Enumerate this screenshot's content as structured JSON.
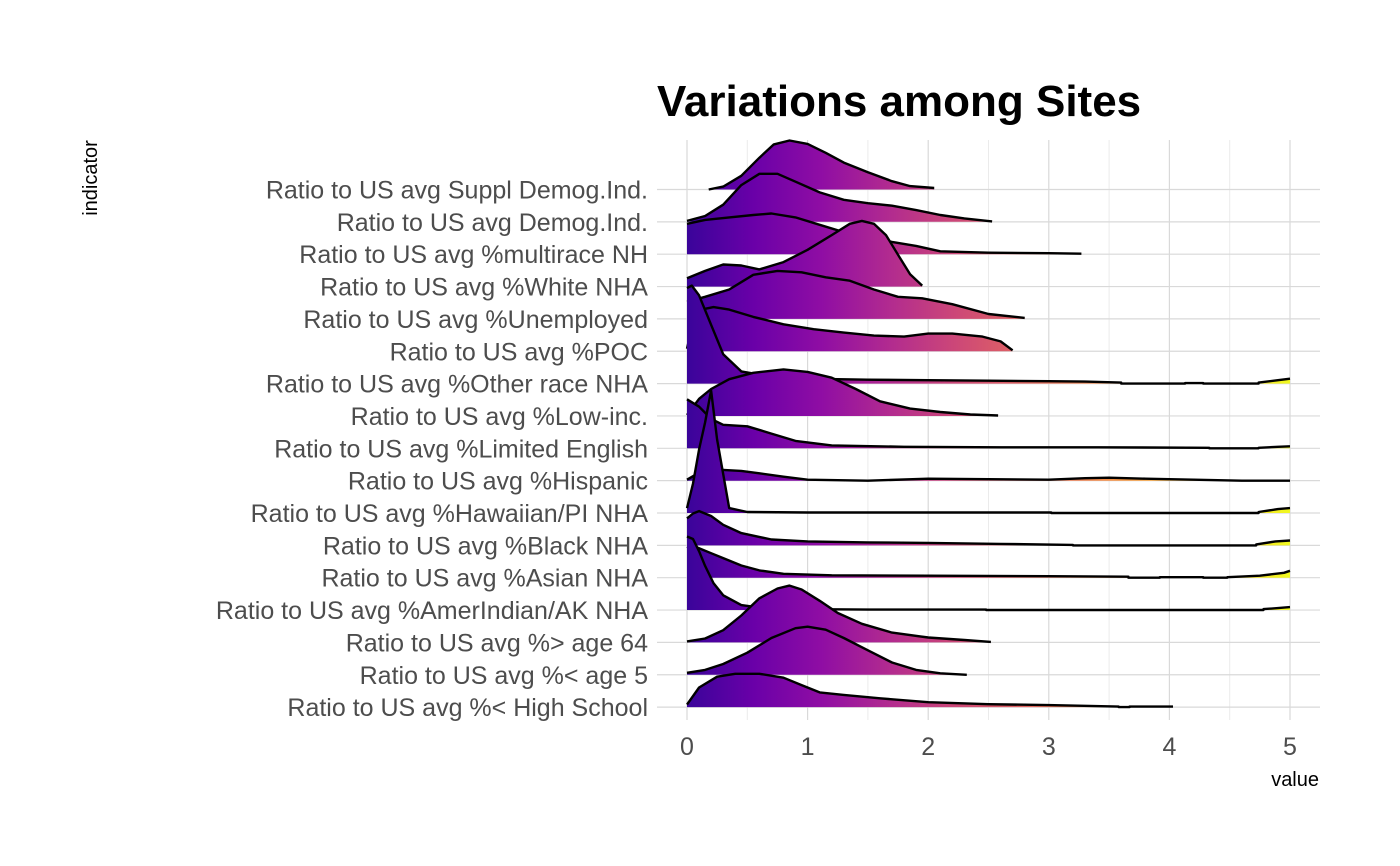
{
  "chart_data": {
    "type": "ridgeline",
    "title": "Variations among Sites",
    "xlabel": "value",
    "ylabel": "indicator",
    "xlim": [
      -0.25,
      5.25
    ],
    "x_ticks": [
      0,
      1,
      2,
      3,
      4,
      5
    ],
    "grid": true,
    "legend": "none",
    "colors": {
      "gradient": [
        "#3a049a",
        "#6a00a8",
        "#8f0da4",
        "#b12a90",
        "#cc4778",
        "#e16462",
        "#f1844b",
        "#fca636",
        "#fcce25",
        "#f0f921"
      ],
      "outline": "#000000",
      "background": "#ffffff"
    },
    "series": [
      {
        "name": "Ratio to US avg Suppl Demog.Ind.",
        "density": [
          [
            0.18,
            0
          ],
          [
            0.3,
            0.06
          ],
          [
            0.45,
            0.28
          ],
          [
            0.6,
            0.65
          ],
          [
            0.72,
            0.92
          ],
          [
            0.85,
            1.0
          ],
          [
            1.0,
            0.93
          ],
          [
            1.15,
            0.75
          ],
          [
            1.3,
            0.55
          ],
          [
            1.5,
            0.35
          ],
          [
            1.7,
            0.17
          ],
          [
            1.85,
            0.07
          ],
          [
            2.05,
            0.03
          ]
        ]
      },
      {
        "name": "Ratio to US avg Demog.Ind.",
        "density": [
          [
            0.0,
            0.02
          ],
          [
            0.15,
            0.12
          ],
          [
            0.3,
            0.35
          ],
          [
            0.45,
            0.75
          ],
          [
            0.6,
            0.98
          ],
          [
            0.75,
            0.98
          ],
          [
            0.9,
            0.82
          ],
          [
            1.1,
            0.6
          ],
          [
            1.3,
            0.45
          ],
          [
            1.5,
            0.38
          ],
          [
            1.7,
            0.33
          ],
          [
            1.9,
            0.24
          ],
          [
            2.1,
            0.14
          ],
          [
            2.3,
            0.07
          ],
          [
            2.53,
            0.01
          ]
        ]
      },
      {
        "name": "Ratio to US avg %multirace NH",
        "density": [
          [
            0.0,
            0.62
          ],
          [
            0.15,
            0.7
          ],
          [
            0.35,
            0.75
          ],
          [
            0.55,
            0.8
          ],
          [
            0.7,
            0.83
          ],
          [
            0.9,
            0.75
          ],
          [
            1.1,
            0.6
          ],
          [
            1.3,
            0.45
          ],
          [
            1.5,
            0.35
          ],
          [
            1.7,
            0.25
          ],
          [
            1.9,
            0.17
          ],
          [
            2.1,
            0.06
          ],
          [
            2.5,
            0.03
          ],
          [
            3.0,
            0.02
          ],
          [
            3.27,
            0.01
          ]
        ]
      },
      {
        "name": "Ratio to US avg %White NHA",
        "density": [
          [
            0.0,
            0.17
          ],
          [
            0.15,
            0.32
          ],
          [
            0.3,
            0.45
          ],
          [
            0.45,
            0.43
          ],
          [
            0.6,
            0.35
          ],
          [
            0.8,
            0.5
          ],
          [
            1.0,
            0.75
          ],
          [
            1.2,
            1.05
          ],
          [
            1.35,
            1.28
          ],
          [
            1.45,
            1.34
          ],
          [
            1.55,
            1.28
          ],
          [
            1.65,
            1.05
          ],
          [
            1.75,
            0.65
          ],
          [
            1.85,
            0.25
          ],
          [
            1.95,
            0.02
          ]
        ]
      },
      {
        "name": "Ratio to US avg %Unemployed",
        "density": [
          [
            0.0,
            0.35
          ],
          [
            0.15,
            0.45
          ],
          [
            0.35,
            0.6
          ],
          [
            0.55,
            0.9
          ],
          [
            0.75,
            0.98
          ],
          [
            0.95,
            0.95
          ],
          [
            1.15,
            0.85
          ],
          [
            1.35,
            0.78
          ],
          [
            1.55,
            0.6
          ],
          [
            1.75,
            0.45
          ],
          [
            1.95,
            0.42
          ],
          [
            2.2,
            0.3
          ],
          [
            2.5,
            0.1
          ],
          [
            2.8,
            0.02
          ]
        ]
      },
      {
        "name": "Ratio to US avg %POC",
        "density": [
          [
            0.0,
            0.05
          ],
          [
            0.05,
            0.6
          ],
          [
            0.12,
            0.85
          ],
          [
            0.22,
            0.9
          ],
          [
            0.35,
            0.85
          ],
          [
            0.55,
            0.7
          ],
          [
            0.8,
            0.55
          ],
          [
            1.05,
            0.45
          ],
          [
            1.3,
            0.38
          ],
          [
            1.55,
            0.32
          ],
          [
            1.8,
            0.3
          ],
          [
            2.0,
            0.36
          ],
          [
            2.2,
            0.36
          ],
          [
            2.45,
            0.3
          ],
          [
            2.6,
            0.2
          ],
          [
            2.7,
            0.02
          ]
        ]
      },
      {
        "name": "Ratio to US avg %Other race NHA",
        "density": [
          [
            0.0,
            1.95
          ],
          [
            0.04,
            2.0
          ],
          [
            0.1,
            1.8
          ],
          [
            0.2,
            1.2
          ],
          [
            0.3,
            0.6
          ],
          [
            0.45,
            0.25
          ],
          [
            0.7,
            0.14
          ],
          [
            1.0,
            0.1
          ],
          [
            1.5,
            0.08
          ],
          [
            2.0,
            0.07
          ],
          [
            2.5,
            0.06
          ],
          [
            3.0,
            0.05
          ],
          [
            3.3,
            0.04
          ],
          [
            3.6,
            0.02
          ],
          [
            3.6,
            0
          ],
          [
            4.13,
            0
          ],
          [
            4.13,
            0.01
          ],
          [
            4.28,
            0.01
          ],
          [
            4.28,
            0
          ],
          [
            4.74,
            0
          ],
          [
            4.74,
            0.02
          ],
          [
            4.9,
            0.07
          ],
          [
            5.0,
            0.1
          ]
        ]
      },
      {
        "name": "Ratio to US avg %Low-inc.",
        "density": [
          [
            0.0,
            0.02
          ],
          [
            0.1,
            0.35
          ],
          [
            0.2,
            0.55
          ],
          [
            0.35,
            0.75
          ],
          [
            0.55,
            0.88
          ],
          [
            0.8,
            0.95
          ],
          [
            1.0,
            0.9
          ],
          [
            1.2,
            0.78
          ],
          [
            1.4,
            0.55
          ],
          [
            1.6,
            0.3
          ],
          [
            1.85,
            0.15
          ],
          [
            2.1,
            0.08
          ],
          [
            2.35,
            0.03
          ],
          [
            2.58,
            0.01
          ]
        ]
      },
      {
        "name": "Ratio to US avg %Limited English",
        "density": [
          [
            0.0,
            1.0
          ],
          [
            0.1,
            0.85
          ],
          [
            0.2,
            0.6
          ],
          [
            0.3,
            0.48
          ],
          [
            0.5,
            0.45
          ],
          [
            0.7,
            0.3
          ],
          [
            0.9,
            0.15
          ],
          [
            1.2,
            0.06
          ],
          [
            1.8,
            0.03
          ],
          [
            2.6,
            0.02
          ],
          [
            3.4,
            0.02
          ],
          [
            4.33,
            0.01
          ],
          [
            4.33,
            0
          ],
          [
            4.74,
            0
          ],
          [
            4.74,
            0.01
          ],
          [
            4.9,
            0.03
          ],
          [
            5.0,
            0.04
          ]
        ]
      },
      {
        "name": "Ratio to US avg %Hispanic",
        "density": [
          [
            0.0,
            0.02
          ],
          [
            0.07,
            0.12
          ],
          [
            0.15,
            0.24
          ],
          [
            0.3,
            0.22
          ],
          [
            0.45,
            0.2
          ],
          [
            0.6,
            0.15
          ],
          [
            0.8,
            0.08
          ],
          [
            1.0,
            0.02
          ],
          [
            1.5,
            0.0
          ],
          [
            2.0,
            0.04
          ],
          [
            2.5,
            0.03
          ],
          [
            3.0,
            0.02
          ],
          [
            3.3,
            0.05
          ],
          [
            3.5,
            0.06
          ],
          [
            3.8,
            0.04
          ],
          [
            4.2,
            0.02
          ],
          [
            4.6,
            0.0
          ],
          [
            5.0,
            0.0
          ]
        ]
      },
      {
        "name": "Ratio to US avg %Hawaiian/PI NHA",
        "density": [
          [
            0.0,
            0.1
          ],
          [
            0.05,
            0.6
          ],
          [
            0.1,
            1.3
          ],
          [
            0.15,
            1.85
          ],
          [
            0.2,
            2.5
          ],
          [
            0.25,
            1.5
          ],
          [
            0.35,
            0.1
          ],
          [
            0.5,
            0.02
          ],
          [
            1.0,
            0.01
          ],
          [
            2.0,
            0.01
          ],
          [
            3.02,
            0.01
          ],
          [
            3.02,
            0
          ],
          [
            4.74,
            0
          ],
          [
            4.74,
            0.02
          ],
          [
            4.9,
            0.08
          ],
          [
            5.0,
            0.1
          ]
        ]
      },
      {
        "name": "Ratio to US avg %Black NHA",
        "density": [
          [
            0.0,
            0.55
          ],
          [
            0.05,
            0.65
          ],
          [
            0.1,
            0.7
          ],
          [
            0.2,
            0.6
          ],
          [
            0.3,
            0.42
          ],
          [
            0.45,
            0.25
          ],
          [
            0.7,
            0.12
          ],
          [
            1.0,
            0.08
          ],
          [
            1.5,
            0.06
          ],
          [
            2.0,
            0.05
          ],
          [
            2.6,
            0.03
          ],
          [
            3.2,
            0.01
          ],
          [
            3.2,
            0
          ],
          [
            4.72,
            0
          ],
          [
            4.72,
            0.02
          ],
          [
            4.88,
            0.08
          ],
          [
            5.0,
            0.1
          ]
        ]
      },
      {
        "name": "Ratio to US avg %Asian NHA",
        "density": [
          [
            0.0,
            0.6
          ],
          [
            0.05,
            0.65
          ],
          [
            0.1,
            0.6
          ],
          [
            0.2,
            0.5
          ],
          [
            0.3,
            0.4
          ],
          [
            0.45,
            0.25
          ],
          [
            0.6,
            0.15
          ],
          [
            0.8,
            0.08
          ],
          [
            1.2,
            0.05
          ],
          [
            2.0,
            0.04
          ],
          [
            3.0,
            0.03
          ],
          [
            3.66,
            0.02
          ],
          [
            3.66,
            0
          ],
          [
            3.92,
            0
          ],
          [
            3.92,
            0.01
          ],
          [
            4.28,
            0.01
          ],
          [
            4.28,
            0
          ],
          [
            4.48,
            0
          ],
          [
            4.48,
            0.01
          ],
          [
            4.75,
            0.04
          ],
          [
            4.95,
            0.1
          ],
          [
            5.0,
            0.14
          ]
        ]
      },
      {
        "name": "Ratio to US avg %AmerIndian/AK NHA",
        "density": [
          [
            0.0,
            1.5
          ],
          [
            0.05,
            1.45
          ],
          [
            0.1,
            1.2
          ],
          [
            0.15,
            0.9
          ],
          [
            0.22,
            0.55
          ],
          [
            0.3,
            0.3
          ],
          [
            0.45,
            0.1
          ],
          [
            0.6,
            0.05
          ],
          [
            0.9,
            0.02
          ],
          [
            1.5,
            0.01
          ],
          [
            2.48,
            0.01
          ],
          [
            2.48,
            0
          ],
          [
            4.78,
            0
          ],
          [
            4.78,
            0.02
          ],
          [
            4.9,
            0.04
          ],
          [
            5.0,
            0.06
          ]
        ]
      },
      {
        "name": "Ratio to US avg %> age 64",
        "density": [
          [
            0.0,
            0.02
          ],
          [
            0.15,
            0.08
          ],
          [
            0.3,
            0.25
          ],
          [
            0.45,
            0.55
          ],
          [
            0.6,
            0.9
          ],
          [
            0.75,
            1.1
          ],
          [
            0.85,
            1.16
          ],
          [
            0.95,
            1.08
          ],
          [
            1.1,
            0.85
          ],
          [
            1.25,
            0.6
          ],
          [
            1.45,
            0.38
          ],
          [
            1.7,
            0.2
          ],
          [
            2.0,
            0.1
          ],
          [
            2.3,
            0.05
          ],
          [
            2.52,
            0.01
          ]
        ]
      },
      {
        "name": "Ratio to US avg %< age 5",
        "density": [
          [
            0.0,
            0.04
          ],
          [
            0.15,
            0.1
          ],
          [
            0.3,
            0.22
          ],
          [
            0.5,
            0.45
          ],
          [
            0.7,
            0.75
          ],
          [
            0.9,
            0.95
          ],
          [
            1.0,
            0.98
          ],
          [
            1.15,
            0.92
          ],
          [
            1.3,
            0.75
          ],
          [
            1.5,
            0.5
          ],
          [
            1.7,
            0.25
          ],
          [
            1.9,
            0.1
          ],
          [
            2.1,
            0.03
          ],
          [
            2.32,
            0.0
          ]
        ]
      },
      {
        "name": "Ratio to US avg %< High School",
        "density": [
          [
            0.0,
            0.05
          ],
          [
            0.1,
            0.4
          ],
          [
            0.25,
            0.62
          ],
          [
            0.4,
            0.68
          ],
          [
            0.6,
            0.68
          ],
          [
            0.8,
            0.6
          ],
          [
            0.95,
            0.45
          ],
          [
            1.1,
            0.3
          ],
          [
            1.3,
            0.25
          ],
          [
            1.6,
            0.18
          ],
          [
            2.0,
            0.1
          ],
          [
            2.5,
            0.06
          ],
          [
            3.0,
            0.04
          ],
          [
            3.58,
            0.01
          ],
          [
            3.58,
            0
          ],
          [
            3.67,
            0
          ],
          [
            3.67,
            0.01
          ],
          [
            4.03,
            0.01
          ]
        ]
      }
    ]
  }
}
